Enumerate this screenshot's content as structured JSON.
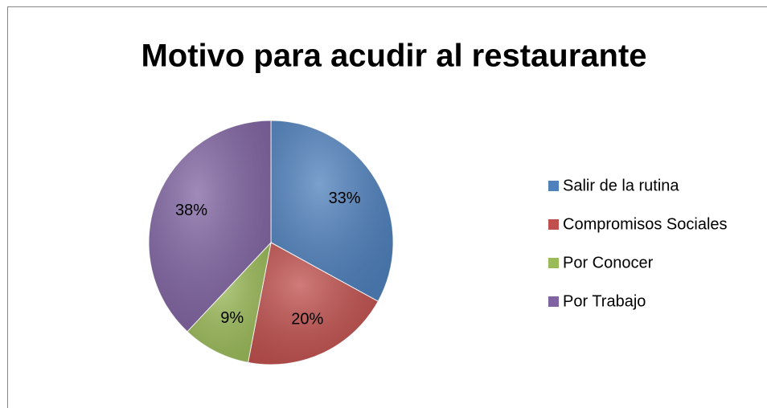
{
  "chart_data": {
    "type": "pie",
    "title": "Motivo para acudir al restaurante",
    "categories": [
      "Salir de la rutina",
      "Compromisos Sociales",
      "Por Conocer",
      "Por Trabajo"
    ],
    "values": [
      33,
      20,
      9,
      38
    ],
    "value_labels": [
      "33%",
      "20%",
      "9%",
      "38%"
    ],
    "colors": [
      "#4f81bd",
      "#c0504d",
      "#9bbb59",
      "#8064a2"
    ],
    "legend": "right"
  }
}
